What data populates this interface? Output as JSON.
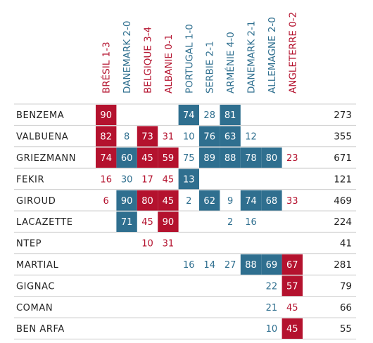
{
  "chart_data": {
    "type": "heatmap",
    "colors": {
      "loss": "#b4122e",
      "win": "#2f6f8f",
      "rule": "#cfcfcf",
      "text": "#222222"
    },
    "matches": [
      {
        "label": "BRÉSIL 1-3",
        "result": "loss"
      },
      {
        "label": "DANEMARK 2-0",
        "result": "win"
      },
      {
        "label": "BELGIQUE 3-4",
        "result": "loss"
      },
      {
        "label": "ALBANIE 0-1",
        "result": "loss"
      },
      {
        "label": "PORTUGAL 1-0",
        "result": "win"
      },
      {
        "label": "SERBIE 2-1",
        "result": "win"
      },
      {
        "label": "ARMÉNIE 4-0",
        "result": "win"
      },
      {
        "label": "DANEMARK 2-1",
        "result": "win"
      },
      {
        "label": "ALLEMAGNE 2-0",
        "result": "win"
      },
      {
        "label": "ANGLETERRE 0-2",
        "result": "loss"
      }
    ],
    "players": [
      {
        "name": "BENZEMA",
        "total": "273",
        "values": [
          "90",
          "",
          "",
          "",
          "74",
          "28",
          "81",
          "",
          "",
          ""
        ],
        "starter": [
          1,
          0,
          0,
          0,
          1,
          0,
          1,
          0,
          0,
          0
        ]
      },
      {
        "name": "VALBUENA",
        "total": "355",
        "values": [
          "82",
          "8",
          "73",
          "31",
          "10",
          "76",
          "63",
          "12",
          "",
          ""
        ],
        "starter": [
          1,
          0,
          1,
          0,
          0,
          1,
          1,
          0,
          0,
          0
        ]
      },
      {
        "name": "GRIEZMANN",
        "total": "671",
        "values": [
          "74",
          "60",
          "45",
          "59",
          "75",
          "89",
          "88",
          "78",
          "80",
          "23"
        ],
        "starter": [
          1,
          1,
          1,
          1,
          0,
          1,
          1,
          1,
          1,
          0
        ]
      },
      {
        "name": "FEKIR",
        "total": "121",
        "values": [
          "16",
          "30",
          "17",
          "45",
          "13",
          "",
          "",
          "",
          "",
          ""
        ],
        "starter": [
          0,
          0,
          0,
          0,
          1,
          0,
          0,
          0,
          0,
          0
        ]
      },
      {
        "name": "GIROUD",
        "total": "469",
        "values": [
          "6",
          "90",
          "80",
          "45",
          "2",
          "62",
          "9",
          "74",
          "68",
          "33"
        ],
        "starter": [
          0,
          1,
          1,
          1,
          0,
          1,
          0,
          1,
          1,
          0
        ]
      },
      {
        "name": "LACAZETTE",
        "total": "224",
        "values": [
          "",
          "71",
          "45",
          "90",
          "",
          "",
          "2",
          "16",
          "",
          ""
        ],
        "starter": [
          0,
          1,
          0,
          1,
          0,
          0,
          0,
          0,
          0,
          0
        ]
      },
      {
        "name": "NTEP",
        "total": "41",
        "values": [
          "",
          "",
          "10",
          "31",
          "",
          "",
          "",
          "",
          "",
          ""
        ],
        "starter": [
          0,
          0,
          0,
          0,
          0,
          0,
          0,
          0,
          0,
          0
        ]
      },
      {
        "name": "MARTIAL",
        "total": "281",
        "values": [
          "",
          "",
          "",
          "",
          "16",
          "14",
          "27",
          "88",
          "69",
          "67"
        ],
        "starter": [
          0,
          0,
          0,
          0,
          0,
          0,
          0,
          1,
          1,
          1
        ]
      },
      {
        "name": "GIGNAC",
        "total": "79",
        "values": [
          "",
          "",
          "",
          "",
          "",
          "",
          "",
          "",
          "22",
          "57"
        ],
        "starter": [
          0,
          0,
          0,
          0,
          0,
          0,
          0,
          0,
          0,
          1
        ]
      },
      {
        "name": "COMAN",
        "total": "66",
        "values": [
          "",
          "",
          "",
          "",
          "",
          "",
          "",
          "",
          "21",
          "45"
        ],
        "starter": [
          0,
          0,
          0,
          0,
          0,
          0,
          0,
          0,
          0,
          0
        ]
      },
      {
        "name": "BEN ARFA",
        "total": "55",
        "values": [
          "",
          "",
          "",
          "",
          "",
          "",
          "",
          "",
          "10",
          "45"
        ],
        "starter": [
          0,
          0,
          0,
          0,
          0,
          0,
          0,
          0,
          0,
          1
        ]
      }
    ]
  }
}
